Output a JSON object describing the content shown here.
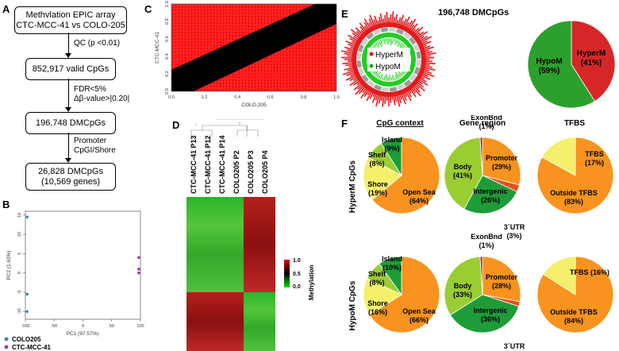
{
  "panels": {
    "a": "A",
    "b": "B",
    "c": "C",
    "d": "D",
    "e": "E",
    "f": "F"
  },
  "flow": {
    "box1_line1": "Methvlation EPIC array",
    "box1_line2": "CTC-MCC-41 vs COLO-205",
    "step1": "QC (p <0.01)",
    "box2": "852,917 valid CpGs",
    "step2_line1": "FDR<5%",
    "step2_line2": "Δβ-value>|0.20|",
    "box3": "196,748 DMCpGs",
    "step3_line1": "Promoter",
    "step3_line2": "CpGI/Shore",
    "box4_line1": "26,828 DMCpGs",
    "box4_line2": "(10,569 genes)"
  },
  "pca": {
    "xlabel": "PC1 (97.57%)",
    "ylabel": "PC2 (1.63%)",
    "xticks": [
      "-100",
      "-50",
      "0",
      "50",
      "100"
    ],
    "yticks": [
      "15",
      "10",
      "5",
      "0",
      "-5",
      "-10"
    ],
    "legend": [
      {
        "name": "COLO205",
        "color": "#3b8bb5"
      },
      {
        "name": "CTC-MCC-41",
        "color": "#a23bb4"
      }
    ]
  },
  "scatter_c": {
    "xlabel": "COLO-205",
    "ylabel": "CTC-MCC-41",
    "xticks": [
      "0.0",
      "0.2",
      "0.4",
      "0.6",
      "0.8",
      "1.0"
    ],
    "yticks": [
      "0.0",
      "0.2",
      "0.4",
      "0.6",
      "0.8",
      "1.0"
    ]
  },
  "heatmap": {
    "columns": [
      "CTC-MCC-41 P13",
      "CTC-MCC-41 P12",
      "CTC-MCC-41 P14",
      "COLO205 P2",
      "COLO205 P3",
      "COLO205 P4"
    ],
    "legend_title": "Methylation",
    "legend_ticks": [
      "1.0",
      "0.5",
      "0.0"
    ]
  },
  "circos": {
    "label_hyper": "HyperM",
    "label_hypo": "HypoM"
  },
  "e_title": "196,748 DMCpGs",
  "f_headers": {
    "cpg": "CpG context",
    "gene": "Gene region",
    "tfbs": "TFBS"
  },
  "row_labels": {
    "hyper": "HyperM CpGs",
    "hypo": "HypoM CpGs"
  },
  "colors": {
    "hyper": "#e41a1c",
    "hypo": "#2ca02c",
    "orange": "#f7931e",
    "yellow": "#f5f06b",
    "dkgreen": "#1f9c3a",
    "ltgreen": "#9acd32",
    "redorange": "#e8501e",
    "red": "#d62728"
  },
  "chart_data": [
    {
      "type": "scatter",
      "title": "",
      "xlabel": "PC1 (97.57%)",
      "ylabel": "PC2 (1.63%)",
      "xlim": [
        -100,
        100
      ],
      "ylim": [
        -10,
        15
      ],
      "series": [
        {
          "name": "COLO205",
          "points": [
            [
              -97,
              14.5
            ],
            [
              -97,
              -5.5
            ],
            [
              -97,
              -10
            ]
          ]
        },
        {
          "name": "CTC-MCC-41",
          "points": [
            [
              97,
              4
            ],
            [
              97,
              1
            ],
            [
              97,
              0
            ]
          ]
        }
      ]
    },
    {
      "type": "pie",
      "title": "196,748 DMCpGs",
      "series": [
        {
          "name": "HyperM",
          "value": 41
        },
        {
          "name": "HypoM",
          "value": 59
        }
      ]
    },
    {
      "type": "pie",
      "title": "CpG context - HyperM CpGs",
      "slices": [
        {
          "label": "Open Sea",
          "pct": "(64%)",
          "value": 64
        },
        {
          "label": "Shore",
          "pct": "(19%)",
          "value": 19
        },
        {
          "label": "Shelf",
          "pct": "(8%)",
          "value": 8
        },
        {
          "label": "Island",
          "pct": "(9%)",
          "value": 9
        }
      ]
    },
    {
      "type": "pie",
      "title": "Gene region - HyperM CpGs",
      "slices": [
        {
          "label": "Promoter",
          "pct": "(29%)",
          "value": 29
        },
        {
          "label": "3´UTR",
          "pct": "(3%)",
          "value": 3
        },
        {
          "label": "Intergenic",
          "pct": "(26%)",
          "value": 26
        },
        {
          "label": "Body",
          "pct": "(41%)",
          "value": 41
        },
        {
          "label": "ExonBnd",
          "pct": "(1%)",
          "value": 1
        }
      ]
    },
    {
      "type": "pie",
      "title": "TFBS - HyperM CpGs",
      "slices": [
        {
          "label": "Outside TFBS",
          "pct": "(83%)",
          "value": 83
        },
        {
          "label": "TFBS",
          "pct": "(17%)",
          "value": 17
        }
      ]
    },
    {
      "type": "pie",
      "title": "CpG context - HypoM CpGs",
      "slices": [
        {
          "label": "Open Sea",
          "pct": "(66%)",
          "value": 66
        },
        {
          "label": "Shore",
          "pct": "(16%)",
          "value": 16
        },
        {
          "label": "Shelf",
          "pct": "(8%)",
          "value": 8
        },
        {
          "label": "Island",
          "pct": "(10%)",
          "value": 10
        }
      ]
    },
    {
      "type": "pie",
      "title": "Gene region - HypoM CpGs",
      "slices": [
        {
          "label": "Promoter",
          "pct": "(28%)",
          "value": 28
        },
        {
          "label": "3´UTR",
          "pct": "(2%)",
          "value": 2
        },
        {
          "label": "Intergenic",
          "pct": "(36%)",
          "value": 36
        },
        {
          "label": "Body",
          "pct": "(33%)",
          "value": 33
        },
        {
          "label": "ExonBnd",
          "pct": "(1%)",
          "value": 1
        }
      ]
    },
    {
      "type": "pie",
      "title": "TFBS - HypoM CpGs",
      "slices": [
        {
          "label": "Outside TFBS",
          "pct": "(84%)",
          "value": 84
        },
        {
          "label": "TFBS",
          "pct": "(16%)",
          "value": 16
        }
      ]
    }
  ]
}
